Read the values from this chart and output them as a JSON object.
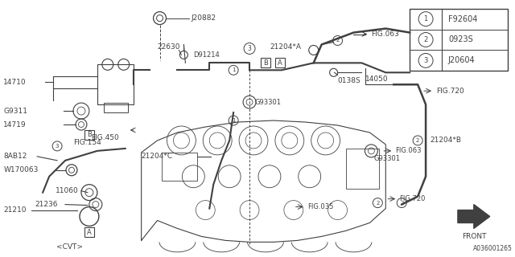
{
  "background_color": "#ffffff",
  "line_color": "#404040",
  "text_color": "#404040",
  "figure_id": "A036001265",
  "legend_items": [
    {
      "num": "1",
      "code": "F92604"
    },
    {
      "num": "2",
      "code": "0923S"
    },
    {
      "num": "3",
      "code": "J20604"
    }
  ]
}
